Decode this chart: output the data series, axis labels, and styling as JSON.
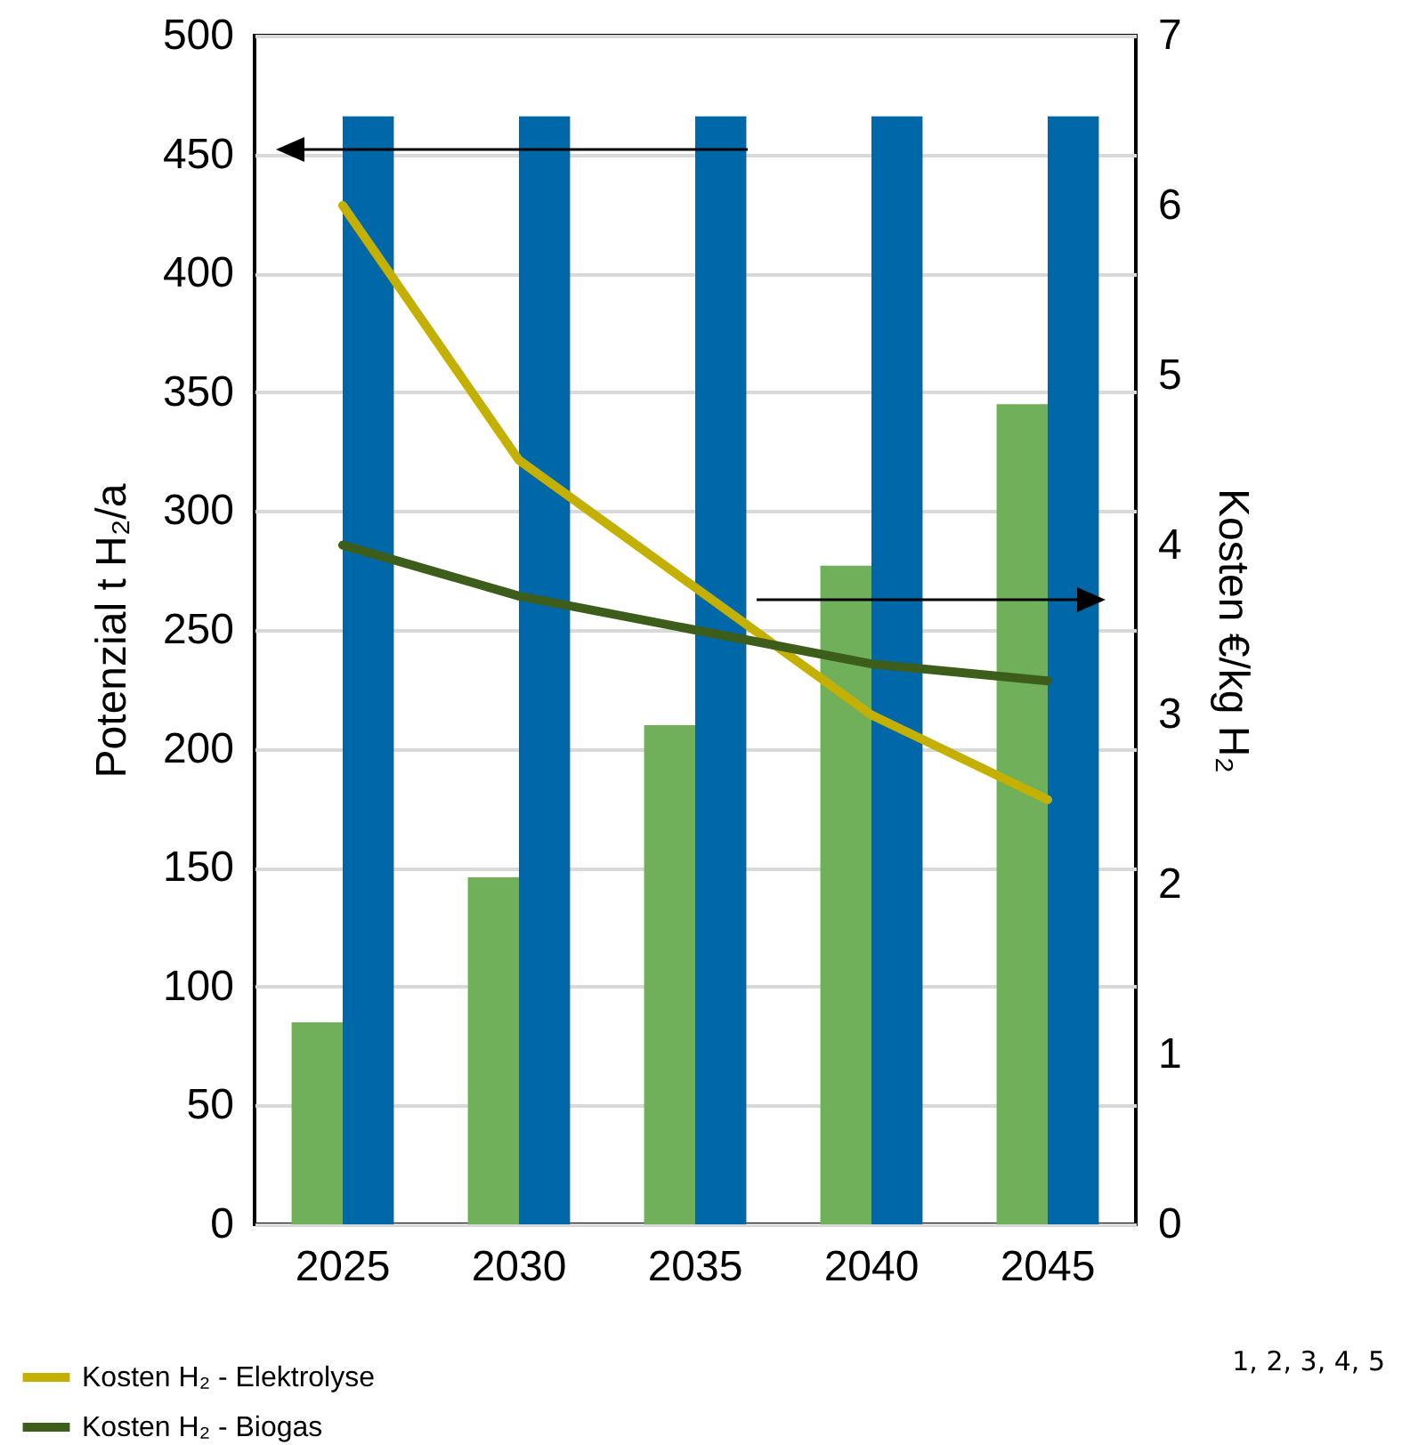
{
  "chart_data": {
    "type": "bar",
    "ylabel": "Potenzial t H₂/a",
    "y2label": "Kosten €/kg H₂",
    "categories": [
      "2025",
      "2030",
      "2035",
      "2040",
      "2045"
    ],
    "series": [
      {
        "type": "bar",
        "color": "#70b05a",
        "values": [
          85,
          146,
          210,
          277,
          345
        ]
      },
      {
        "type": "bar",
        "color": "#0068a8",
        "values": [
          466,
          466,
          466,
          466,
          466
        ]
      },
      {
        "type": "line",
        "name": "Kosten H₂ - Elektrolyse",
        "color": "#c4b000",
        "axis": "y2",
        "values": [
          6.0,
          4.5,
          3.75,
          3.0,
          2.5
        ]
      },
      {
        "type": "line",
        "name": "Kosten H₂ - Biogas",
        "color": "#3d5e1a",
        "axis": "y2",
        "values": [
          4.0,
          3.7,
          3.5,
          3.3,
          3.2
        ]
      }
    ],
    "ylim": [
      0,
      500
    ],
    "yticks": [
      0,
      50,
      100,
      150,
      200,
      250,
      300,
      350,
      400,
      450,
      500
    ],
    "y2lim": [
      0,
      7
    ],
    "y2ticks": [
      0,
      1,
      2,
      3,
      4,
      5,
      6,
      7
    ],
    "grid": "y",
    "legend": "bottom left",
    "line_style": "solid",
    "annotations": [
      "1, 2, 3, 4, 5"
    ]
  }
}
